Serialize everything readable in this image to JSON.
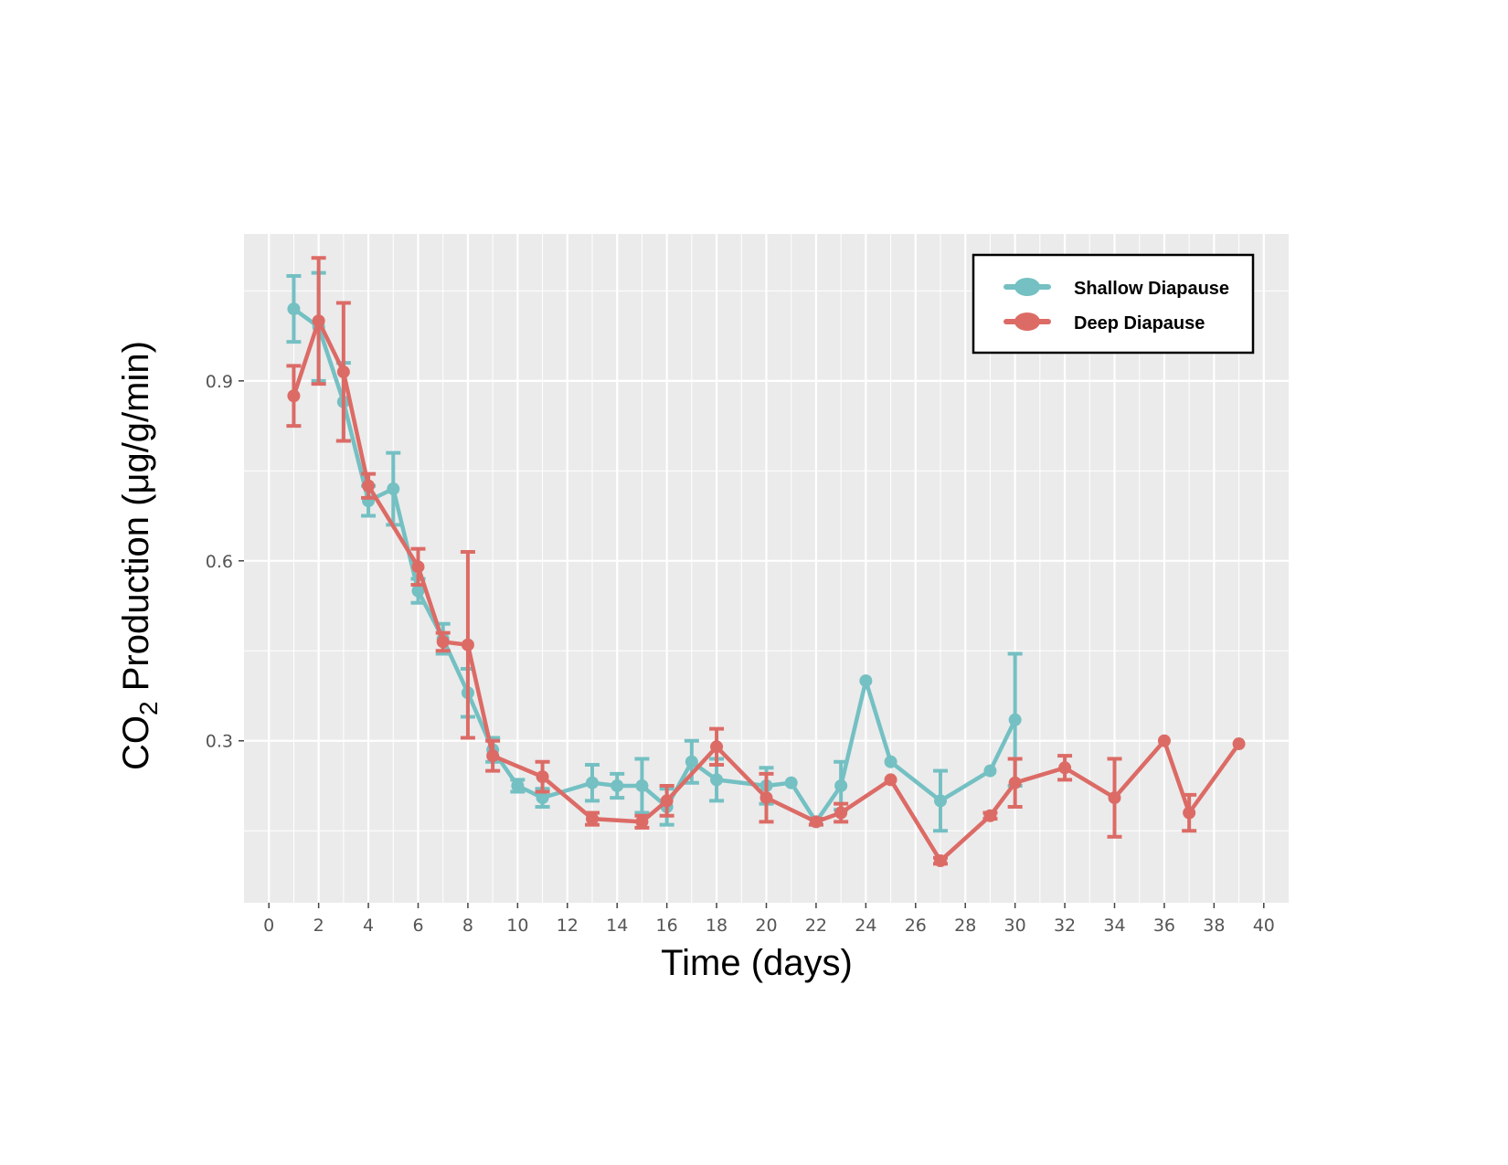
{
  "chart_data": {
    "type": "line",
    "xlabel": "Time (days)",
    "ylabel": {
      "prefix": "CO",
      "subscript": "2",
      "suffix": "  Production (μg/g/min)"
    },
    "xlim": [
      -1,
      41
    ],
    "ylim": [
      0.03,
      1.145
    ],
    "xticks": [
      0,
      2,
      4,
      6,
      8,
      10,
      12,
      14,
      16,
      18,
      20,
      22,
      24,
      26,
      28,
      30,
      32,
      34,
      36,
      38,
      40
    ],
    "yticks": [
      0.3,
      0.6,
      0.9
    ],
    "ytick_labels": [
      "0.3",
      "0.6",
      "0.9"
    ],
    "grid": true,
    "legend_position": "top-right",
    "background": "#ebebeb",
    "series": [
      {
        "name": "Shallow Diapause",
        "color": "#74c0c3",
        "points": [
          {
            "x": 1,
            "y": 1.02,
            "err": 0.055
          },
          {
            "x": 2,
            "y": 0.99,
            "err": 0.09
          },
          {
            "x": 3,
            "y": 0.865,
            "err": 0.065
          },
          {
            "x": 4,
            "y": 0.7,
            "err": 0.025
          },
          {
            "x": 5,
            "y": 0.72,
            "err": 0.06
          },
          {
            "x": 6,
            "y": 0.55,
            "err": 0.02
          },
          {
            "x": 7,
            "y": 0.47,
            "err": 0.025
          },
          {
            "x": 8,
            "y": 0.38,
            "err": 0.04
          },
          {
            "x": 9,
            "y": 0.285,
            "err": 0.02
          },
          {
            "x": 10,
            "y": 0.225,
            "err": 0.01
          },
          {
            "x": 11,
            "y": 0.205,
            "err": 0.015
          },
          {
            "x": 13,
            "y": 0.23,
            "err": 0.03
          },
          {
            "x": 14,
            "y": 0.225,
            "err": 0.02
          },
          {
            "x": 15,
            "y": 0.225,
            "err": 0.045
          },
          {
            "x": 16,
            "y": 0.19,
            "err": 0.03
          },
          {
            "x": 17,
            "y": 0.265,
            "err": 0.035
          },
          {
            "x": 18,
            "y": 0.235,
            "err": 0.035
          },
          {
            "x": 20,
            "y": 0.225,
            "err": 0.03
          },
          {
            "x": 21,
            "y": 0.23,
            "err": 0
          },
          {
            "x": 22,
            "y": 0.165,
            "err": 0.005
          },
          {
            "x": 23,
            "y": 0.225,
            "err": 0.04
          },
          {
            "x": 24,
            "y": 0.4,
            "err": 0
          },
          {
            "x": 25,
            "y": 0.265,
            "err": 0
          },
          {
            "x": 27,
            "y": 0.2,
            "err": 0.05
          },
          {
            "x": 29,
            "y": 0.25,
            "err": 0
          },
          {
            "x": 30,
            "y": 0.335,
            "err": 0.11
          }
        ]
      },
      {
        "name": "Deep Diapause",
        "color": "#dc6b66",
        "points": [
          {
            "x": 1,
            "y": 0.875,
            "err": 0.05
          },
          {
            "x": 2,
            "y": 1.0,
            "err": 0.105
          },
          {
            "x": 3,
            "y": 0.915,
            "err": 0.115
          },
          {
            "x": 4,
            "y": 0.725,
            "err": 0.02
          },
          {
            "x": 6,
            "y": 0.59,
            "err": 0.03
          },
          {
            "x": 7,
            "y": 0.465,
            "err": 0.015
          },
          {
            "x": 8,
            "y": 0.46,
            "err": 0.155
          },
          {
            "x": 9,
            "y": 0.275,
            "err": 0.025
          },
          {
            "x": 11,
            "y": 0.24,
            "err": 0.025
          },
          {
            "x": 13,
            "y": 0.17,
            "err": 0.01
          },
          {
            "x": 15,
            "y": 0.165,
            "err": 0.01
          },
          {
            "x": 16,
            "y": 0.2,
            "err": 0.025
          },
          {
            "x": 18,
            "y": 0.29,
            "err": 0.03
          },
          {
            "x": 20,
            "y": 0.205,
            "err": 0.04
          },
          {
            "x": 22,
            "y": 0.165,
            "err": 0.005
          },
          {
            "x": 23,
            "y": 0.18,
            "err": 0.015
          },
          {
            "x": 25,
            "y": 0.235,
            "err": 0
          },
          {
            "x": 27,
            "y": 0.1,
            "err": 0.005
          },
          {
            "x": 29,
            "y": 0.175,
            "err": 0.005
          },
          {
            "x": 30,
            "y": 0.23,
            "err": 0.04
          },
          {
            "x": 32,
            "y": 0.255,
            "err": 0.02
          },
          {
            "x": 34,
            "y": 0.205,
            "err": 0.065
          },
          {
            "x": 36,
            "y": 0.3,
            "err": 0
          },
          {
            "x": 37,
            "y": 0.18,
            "err": 0.03
          },
          {
            "x": 39,
            "y": 0.295,
            "err": 0
          }
        ]
      }
    ]
  }
}
